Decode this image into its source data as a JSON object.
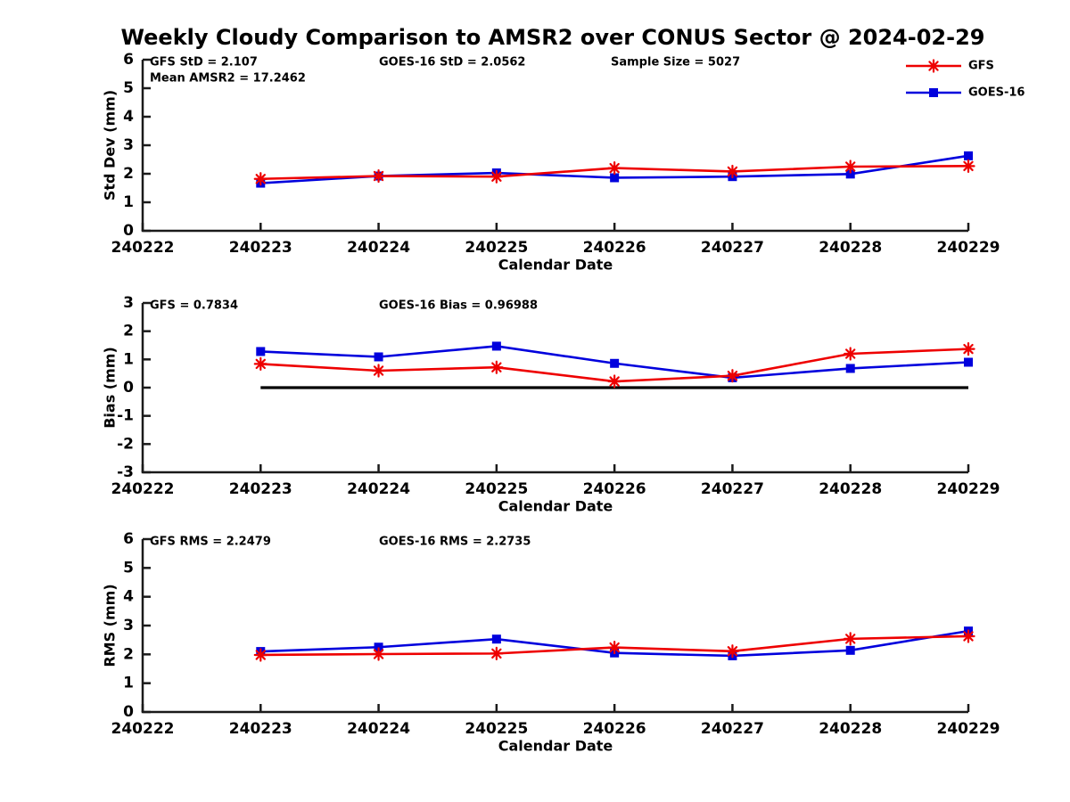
{
  "title": "Weekly Cloudy Comparison to AMSR2 over CONUS Sector @ 2024-02-29",
  "colors": {
    "gfs": "#ee0000",
    "goes16": "#0000dd",
    "axis": "#1a1a1a",
    "text": "#000000",
    "zero_line": "#000000",
    "background": "#ffffff"
  },
  "legend": {
    "position": "top-right",
    "items": [
      {
        "label": "GFS",
        "marker": "asterisk-icon",
        "color_key": "gfs"
      },
      {
        "label": "GOES-16",
        "marker": "square-icon",
        "color_key": "goes16"
      }
    ]
  },
  "chart_data": [
    {
      "type": "line",
      "ylabel": "Std Dev (mm)",
      "xlabel": "Calendar Date",
      "ylim": [
        0,
        6
      ],
      "yticks": [
        0,
        1,
        2,
        3,
        4,
        5,
        6
      ],
      "x_categories": [
        "240222",
        "240223",
        "240224",
        "240225",
        "240226",
        "240227",
        "240228",
        "240229"
      ],
      "x": [
        "240223",
        "240224",
        "240225",
        "240226",
        "240227",
        "240228",
        "240229"
      ],
      "series": [
        {
          "name": "GOES-16",
          "color_key": "goes16",
          "marker": "square",
          "values": [
            1.67,
            1.92,
            2.03,
            1.86,
            1.9,
            1.99,
            2.63
          ]
        },
        {
          "name": "GFS",
          "color_key": "gfs",
          "marker": "asterisk",
          "values": [
            1.82,
            1.92,
            1.9,
            2.2,
            2.08,
            2.25,
            2.27
          ]
        }
      ],
      "annotations": [
        {
          "text": "GFS StD = 2.107",
          "col": 0,
          "row": 0
        },
        {
          "text": "Mean AMSR2 = 17.2462",
          "col": 0,
          "row": 1
        },
        {
          "text": "GOES-16 StD = 2.0562",
          "col": 1,
          "row": 0
        },
        {
          "text": "Sample Size = 5027",
          "col": 2,
          "row": 0
        }
      ],
      "zero_line": false,
      "show_legend": true,
      "grid": false
    },
    {
      "type": "line",
      "ylabel": "Bias (mm)",
      "xlabel": "Calendar Date",
      "ylim": [
        -3,
        3
      ],
      "yticks": [
        -3,
        -2,
        -1,
        0,
        1,
        2,
        3
      ],
      "x_categories": [
        "240222",
        "240223",
        "240224",
        "240225",
        "240226",
        "240227",
        "240228",
        "240229"
      ],
      "x": [
        "240223",
        "240224",
        "240225",
        "240226",
        "240227",
        "240228",
        "240229"
      ],
      "series": [
        {
          "name": "GOES-16",
          "color_key": "goes16",
          "marker": "square",
          "values": [
            1.28,
            1.09,
            1.47,
            0.86,
            0.35,
            0.68,
            0.9
          ]
        },
        {
          "name": "GFS",
          "color_key": "gfs",
          "marker": "asterisk",
          "values": [
            0.84,
            0.6,
            0.72,
            0.22,
            0.42,
            1.2,
            1.37
          ]
        }
      ],
      "annotations": [
        {
          "text": "GFS = 0.7834",
          "col": 0,
          "row": 0
        },
        {
          "text": "GOES-16 Bias  = 0.96988",
          "col": 1,
          "row": 0
        }
      ],
      "zero_line": true,
      "show_legend": false,
      "grid": false
    },
    {
      "type": "line",
      "ylabel": "RMS (mm)",
      "xlabel": "Calendar Date",
      "ylim": [
        0,
        6
      ],
      "yticks": [
        0,
        1,
        2,
        3,
        4,
        5,
        6
      ],
      "x_categories": [
        "240222",
        "240223",
        "240224",
        "240225",
        "240226",
        "240227",
        "240228",
        "240229"
      ],
      "x": [
        "240223",
        "240224",
        "240225",
        "240226",
        "240227",
        "240228",
        "240229"
      ],
      "series": [
        {
          "name": "GOES-16",
          "color_key": "goes16",
          "marker": "square",
          "values": [
            2.1,
            2.25,
            2.53,
            2.05,
            1.95,
            2.14,
            2.81
          ]
        },
        {
          "name": "GFS",
          "color_key": "gfs",
          "marker": "asterisk",
          "values": [
            1.98,
            2.01,
            2.03,
            2.24,
            2.11,
            2.54,
            2.63
          ]
        }
      ],
      "annotations": [
        {
          "text": "GFS RMS = 2.2479",
          "col": 0,
          "row": 0
        },
        {
          "text": "GOES-16 RMS = 2.2735",
          "col": 1,
          "row": 0
        }
      ],
      "zero_line": false,
      "show_legend": false,
      "grid": false
    }
  ]
}
